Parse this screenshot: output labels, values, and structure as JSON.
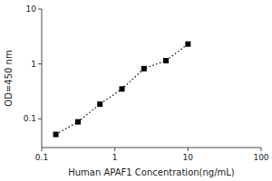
{
  "chart_data": {
    "type": "line",
    "xlabel": "Human APAF1 Concentration(ng/mL)",
    "ylabel": "OD=450 nm",
    "x": [
      0.156,
      0.313,
      0.625,
      1.25,
      2.5,
      5.0,
      10.0
    ],
    "values": [
      0.052,
      0.088,
      0.185,
      0.35,
      0.82,
      1.15,
      2.3
    ],
    "xlim": [
      0.1,
      100
    ],
    "ylim": [
      0.03,
      10
    ],
    "xticks": [
      0.1,
      1,
      10,
      100
    ],
    "yticks": [
      0.1,
      1,
      10
    ],
    "log": true,
    "color": "black",
    "marker": "square",
    "line_style": "dotted"
  }
}
